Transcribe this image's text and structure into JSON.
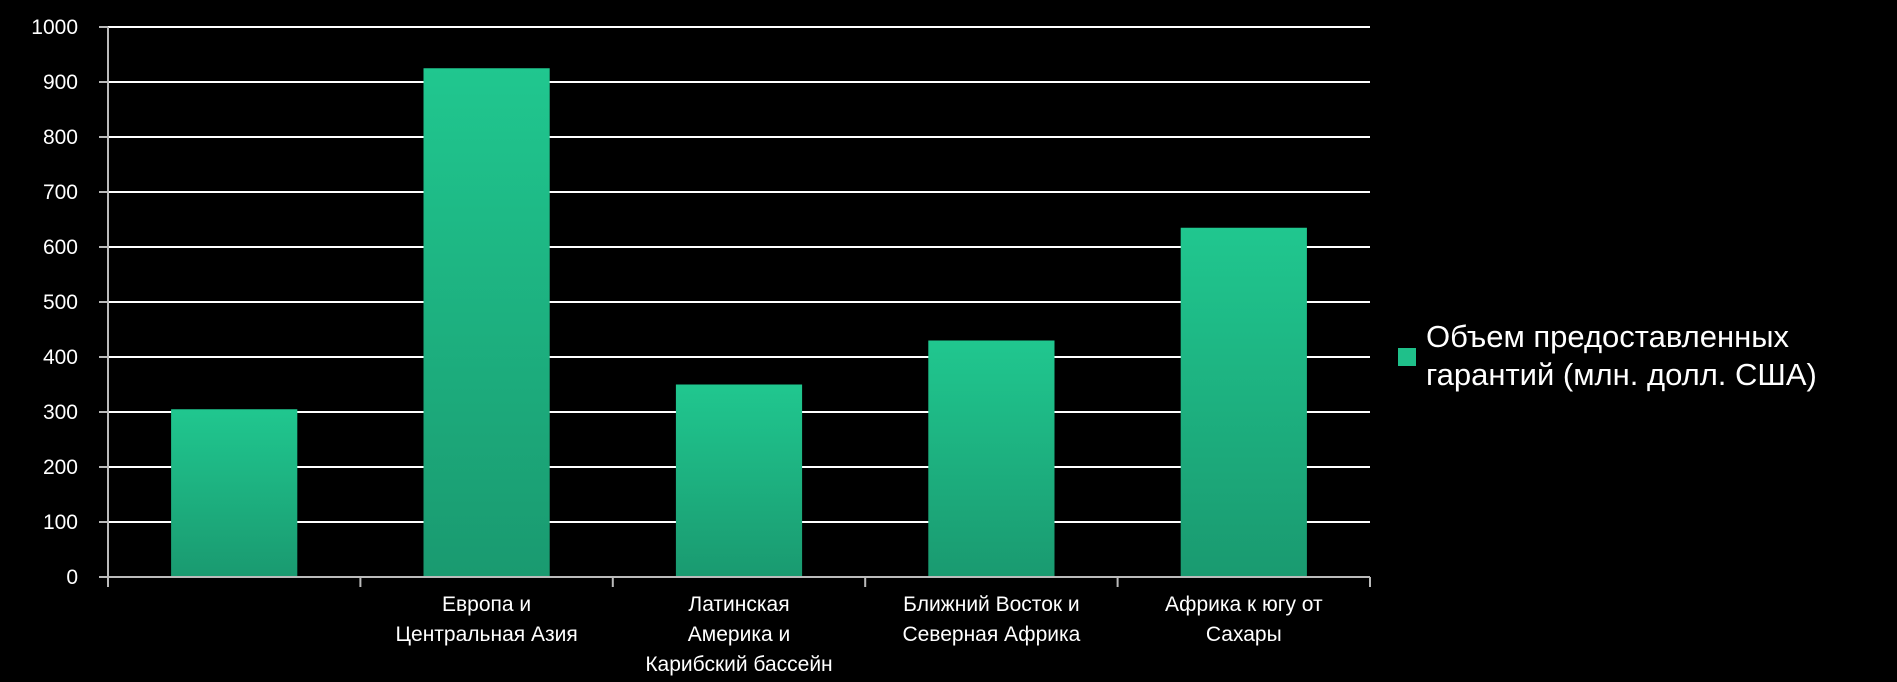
{
  "chart_data": {
    "type": "bar",
    "categories": [
      "",
      "Европа и\nЦентральная Азия",
      "Латинская\nАмерика и\nКарибский бассейн",
      "Ближний Восток и\nСеверная Африка",
      "Африка к югу от\nСахары"
    ],
    "series": [
      {
        "name": "Объем предоставленных\nгарантий (млн. долл. США)",
        "values": [
          305,
          925,
          350,
          430,
          635
        ],
        "color": "#1fc08a"
      }
    ],
    "ylim": [
      0,
      1000
    ],
    "yticks": [
      0,
      100,
      200,
      300,
      400,
      500,
      600,
      700,
      800,
      900,
      1000
    ],
    "grid": true,
    "legend_position": "right"
  }
}
